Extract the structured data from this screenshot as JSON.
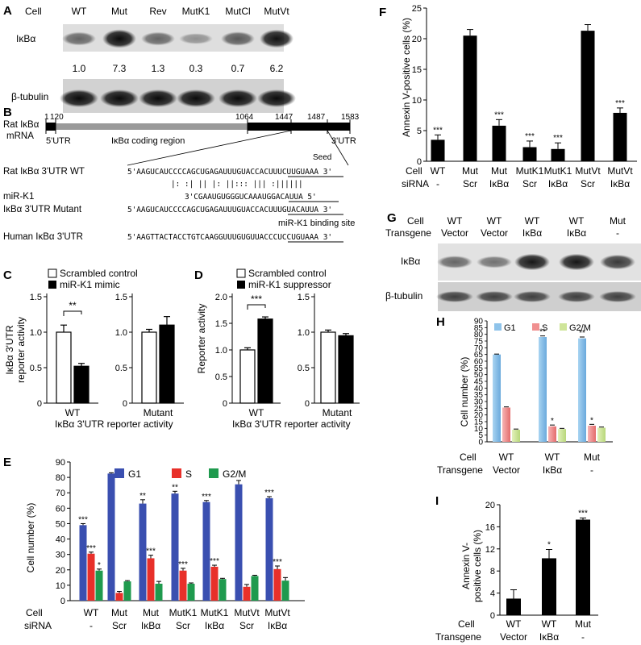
{
  "panelA": {
    "letter": "A",
    "cell_label": "Cell",
    "lanes": [
      "WT",
      "Mut",
      "Rev",
      "MutK1",
      "MutCl",
      "MutVt"
    ],
    "band1_label": "IκBα",
    "values": [
      "1.0",
      "7.3",
      "1.3",
      "0.3",
      "0.7",
      "6.2"
    ],
    "intensity": [
      0.55,
      0.95,
      0.55,
      0.35,
      0.6,
      0.92
    ],
    "band2_label": "β-tubulin"
  },
  "panelB": {
    "letter": "B",
    "mrna_label_1": "Rat IκBα",
    "mrna_label_2": "mRNA",
    "positions": [
      "1",
      "120",
      "1064",
      "1447",
      "1487",
      "1583"
    ],
    "utr5": "5'UTR",
    "coding": "IκBα  coding region",
    "utr3": "3'UTR",
    "seed": "Seed",
    "rows": [
      {
        "label": "Rat IκBα 3'UTR WT",
        "seq": "5'AAGUCAUCCCCAGCUGAGAUUUGUACCACUUUCUUGUAAA 3'"
      },
      {
        "label": "",
        "seq": "|:  :|  ||  |:  ||:::  |||  :||||||"
      },
      {
        "label": "miR-K1",
        "seq": "3'CGAAUGUGGGUCAAAUGGACAUUA 5'"
      },
      {
        "label": "IκBα 3'UTR Mutant",
        "seq": "5'AAGUCAUCCCCAGCUGAGAUUUGUACCACUUUGUACAUUA 3'"
      },
      {
        "label": "",
        "seq": "miR-K1 binding site"
      },
      {
        "label": "Human IκBα 3'UTR",
        "seq": "5'AAGTTACTACCTGTCAAGGUUUGUGUUACCCUCCUGUAAA 3'"
      }
    ]
  },
  "panelC": {
    "letter": "C",
    "legend": [
      "Scrambled control",
      "miR-K1 mimic"
    ],
    "ylabel_1": "IκBα 3'UTR",
    "ylabel_2": "reporter activity",
    "ticks": [
      "0",
      "0.5",
      "1.0",
      "1.5"
    ],
    "groups": [
      "WT",
      "Mutant"
    ],
    "sig": "**",
    "xlabel": "IκBα 3'UTR reporter activity"
  },
  "panelD": {
    "letter": "D",
    "legend": [
      "Scrambled control",
      "miR-K1 suppressor"
    ],
    "ylabel": "Reporter activity",
    "ticks": [
      "0",
      "0.5",
      "1.0",
      "1.5",
      "2.0"
    ],
    "groups": [
      "WT",
      "Mutant"
    ],
    "sig": "***",
    "xlabel": "IκBα 3'UTR reporter activity"
  },
  "panelE": {
    "letter": "E",
    "legend": [
      "G1",
      "S",
      "G2/M"
    ],
    "ylabel": "Cell number (%)",
    "ticks": [
      "0",
      "10",
      "20",
      "30",
      "40",
      "50",
      "60",
      "70",
      "80",
      "90"
    ],
    "row1_label": "Cell",
    "row2_label": "siRNA",
    "cells": [
      "WT",
      "Mut",
      "Mut",
      "MutK1",
      "MutK1",
      "MutVt",
      "MutVt"
    ],
    "sirna": [
      "-",
      "Scr",
      "IκBα",
      "Scr",
      "IκBα",
      "Scr",
      "IκBα"
    ]
  },
  "panelF": {
    "letter": "F",
    "ylabel": "Annexin V-positive cells (%)",
    "ticks": [
      "0",
      "5",
      "10",
      "15",
      "20",
      "25"
    ],
    "row1_label": "Cell",
    "row2_label": "siRNA",
    "cells": [
      "WT",
      "Mut",
      "Mut",
      "MutK1",
      "MutK1",
      "MutVt",
      "MutVt"
    ],
    "sirna": [
      "-",
      "Scr",
      "IκBα",
      "Scr",
      "IκBα",
      "Scr",
      "IκBα"
    ],
    "sig": [
      "***",
      "",
      "***",
      "***",
      "***",
      "",
      "***"
    ]
  },
  "panelG": {
    "letter": "G",
    "row1_label": "Cell",
    "row2_label": "Transgene",
    "cells": [
      "WT",
      "WT",
      "WT",
      "WT",
      "Mut"
    ],
    "transgenes": [
      "Vector",
      "Vector",
      "IκBα",
      "IκBα",
      "-"
    ],
    "intensity": [
      0.55,
      0.5,
      0.9,
      0.9,
      0.75
    ],
    "band1_label": "IκBα",
    "band2_label": "β-tubulin"
  },
  "panelH": {
    "letter": "H",
    "legend": [
      "G1",
      "S",
      "G2/M"
    ],
    "ylabel": "Cell number (%)",
    "ticks": [
      "0",
      "5",
      "10",
      "15",
      "20",
      "25",
      "30",
      "35",
      "40",
      "45",
      "50",
      "55",
      "60",
      "65",
      "70",
      "75",
      "80",
      "85",
      "90"
    ],
    "row1_label": "Cell",
    "row2_label": "Transgene",
    "cells": [
      "WT",
      "WT",
      "Mut"
    ],
    "transgenes": [
      "Vector",
      "IκBα",
      "-"
    ]
  },
  "panelI": {
    "letter": "I",
    "ylabel_1": "Annexin V-",
    "ylabel_2": "positive cells (%)",
    "ticks": [
      "0",
      "4",
      "8",
      "12",
      "16",
      "20"
    ],
    "row1_label": "Cell",
    "row2_label": "Transgene",
    "cells": [
      "WT",
      "WT",
      "Mut"
    ],
    "transgenes": [
      "Vector",
      "IκBα",
      "-"
    ],
    "sig": [
      "",
      "*",
      "***"
    ]
  },
  "colors": {
    "g1_E": "#3a4fb0",
    "s_E": "#e8302a",
    "g2m_E": "#1f9a4e",
    "g1_H": "#8ec3ea",
    "s_H": "#f09090",
    "g2m_H": "#cfe59a",
    "bar": "#000000",
    "white": "#ffffff"
  },
  "chart_data": [
    {
      "panel": "C-left",
      "type": "bar",
      "categories": [
        "WT"
      ],
      "series": [
        {
          "name": "Scrambled control",
          "values": [
            1.0
          ],
          "err": [
            0.1
          ]
        },
        {
          "name": "miR-K1 mimic",
          "values": [
            0.52
          ],
          "err": [
            0.04
          ]
        }
      ],
      "ylim": [
        0,
        1.5
      ]
    },
    {
      "panel": "C-right",
      "type": "bar",
      "categories": [
        "Mutant"
      ],
      "series": [
        {
          "name": "Scrambled control",
          "values": [
            1.0
          ],
          "err": [
            0.04
          ]
        },
        {
          "name": "miR-K1 mimic",
          "values": [
            1.1
          ],
          "err": [
            0.12
          ]
        }
      ],
      "ylim": [
        0,
        1.5
      ]
    },
    {
      "panel": "D-left",
      "type": "bar",
      "categories": [
        "WT"
      ],
      "series": [
        {
          "name": "Scrambled control",
          "values": [
            1.0
          ],
          "err": [
            0.04
          ]
        },
        {
          "name": "miR-K1 suppressor",
          "values": [
            1.58
          ],
          "err": [
            0.04
          ]
        }
      ],
      "ylim": [
        0,
        2.0
      ]
    },
    {
      "panel": "D-right",
      "type": "bar",
      "categories": [
        "Mutant"
      ],
      "series": [
        {
          "name": "Scrambled control",
          "values": [
            1.0
          ],
          "err": [
            0.03
          ]
        },
        {
          "name": "miR-K1 suppressor",
          "values": [
            0.95
          ],
          "err": [
            0.03
          ]
        }
      ],
      "ylim": [
        0,
        1.5
      ]
    },
    {
      "panel": "E",
      "type": "bar",
      "series": [
        {
          "name": "G1",
          "values": [
            49,
            82.5,
            63,
            69.5,
            64,
            75.5,
            66.5
          ],
          "err": [
            1,
            0.5,
            2.5,
            1.5,
            1,
            2.5,
            1
          ],
          "sig": [
            "***",
            "",
            "**",
            "**",
            "***",
            "",
            "***"
          ]
        },
        {
          "name": "S",
          "values": [
            30.5,
            5,
            27.5,
            19.5,
            22,
            9,
            20.5
          ],
          "err": [
            1,
            1,
            2,
            1.5,
            1,
            1.5,
            2
          ],
          "sig": [
            "***",
            "",
            "***",
            "***",
            "***",
            "",
            "***"
          ]
        },
        {
          "name": "G2/M",
          "values": [
            19.5,
            12.5,
            11,
            11,
            14,
            16,
            13
          ],
          "err": [
            1,
            0.5,
            1.5,
            0.5,
            0.5,
            0.5,
            2
          ],
          "sig": [
            "*",
            "",
            "",
            "",
            "",
            "",
            ""
          ]
        }
      ],
      "ylim": [
        0,
        90
      ]
    },
    {
      "panel": "F",
      "type": "bar",
      "series": [
        {
          "name": "",
          "values": [
            3.5,
            20.5,
            5.8,
            2.3,
            2.0,
            21.3,
            7.9
          ],
          "err": [
            0.8,
            1,
            1,
            1,
            1,
            1,
            0.8
          ]
        }
      ],
      "ylim": [
        0,
        25
      ]
    },
    {
      "panel": "H",
      "type": "bar",
      "series": [
        {
          "name": "G1",
          "values": [
            65,
            78,
            77
          ],
          "err": [
            0.3,
            0.8,
            1
          ],
          "sig": [
            "",
            "**",
            "**"
          ]
        },
        {
          "name": "S",
          "values": [
            25.5,
            11.5,
            12
          ],
          "err": [
            0.5,
            1,
            1
          ],
          "sig": [
            "",
            "*",
            "*"
          ]
        },
        {
          "name": "G2/M",
          "values": [
            9,
            9.5,
            10.5
          ],
          "err": [
            0.5,
            0.5,
            0.5
          ],
          "sig": [
            "",
            "",
            ""
          ]
        }
      ],
      "ylim": [
        0,
        90
      ]
    },
    {
      "panel": "I",
      "type": "bar",
      "series": [
        {
          "name": "",
          "values": [
            3.0,
            10.3,
            17.3
          ],
          "err": [
            1.6,
            1.6,
            0.3
          ]
        }
      ],
      "ylim": [
        0,
        20
      ]
    }
  ]
}
